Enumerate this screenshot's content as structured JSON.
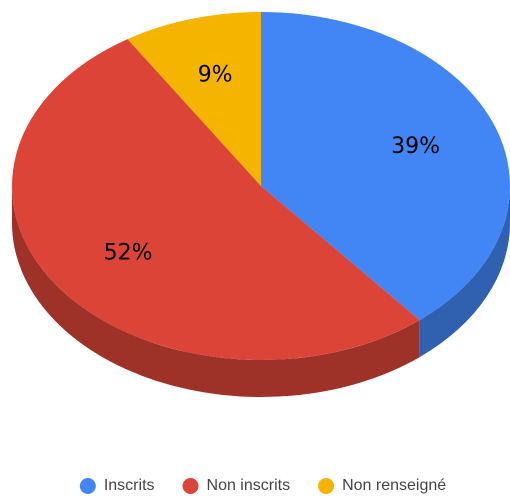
{
  "chart_data": {
    "type": "pie",
    "is_3d": true,
    "categories": [
      "Inscrits",
      "Non inscrits",
      "Non renseigné"
    ],
    "values": [
      39,
      52,
      9
    ],
    "value_labels": [
      "39%",
      "52%",
      "9%"
    ],
    "colors": [
      "#4285f4",
      "#db4437",
      "#f4b400"
    ],
    "legend": "bottom"
  }
}
